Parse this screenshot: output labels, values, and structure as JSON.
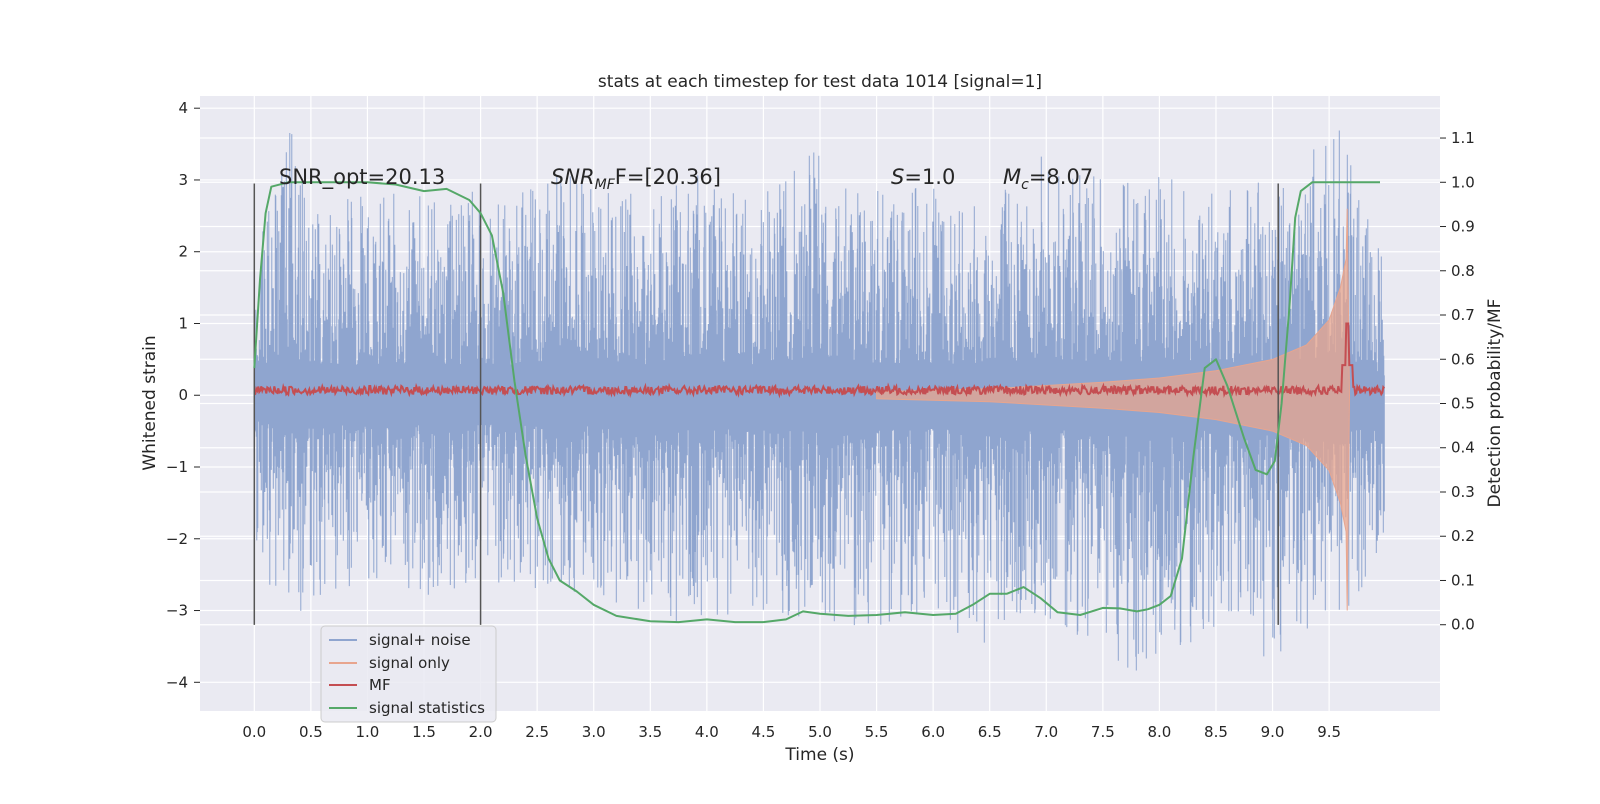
{
  "chart_data": {
    "type": "line",
    "title": "stats at each timestep for test data 1014 [signal=1]",
    "xlabel": "Time (s)",
    "ylabel": "Whitened strain",
    "ylabel_right": "Detection probability/MF",
    "xlim": [
      -0.48,
      10.48
    ],
    "ylim": [
      -4.4,
      4.17
    ],
    "ylim_right": [
      -0.195,
      1.195
    ],
    "x_ticks": [
      "0.0",
      "0.5",
      "1.0",
      "1.5",
      "2.0",
      "2.5",
      "3.0",
      "3.5",
      "4.0",
      "4.5",
      "5.0",
      "5.5",
      "6.0",
      "6.5",
      "7.0",
      "7.5",
      "8.0",
      "8.5",
      "9.0",
      "9.5"
    ],
    "y_ticks": [
      "4",
      "3",
      "2",
      "1",
      "0",
      "−1",
      "−2",
      "−3",
      "−4"
    ],
    "y_ticks_right": [
      "1.1",
      "1.0",
      "0.9",
      "0.8",
      "0.7",
      "0.6",
      "0.5",
      "0.4",
      "0.3",
      "0.2",
      "0.1",
      "0.0"
    ],
    "grid": true,
    "legend_position": "lower-left",
    "annotations": {
      "snr_opt": "SNR_opt=20.13",
      "snr_mf_label": "SNR",
      "snr_mf_sub": "MF",
      "snr_mf_rest": "F=[20.36]",
      "s_label": "S",
      "s_rest": "=1.0",
      "mc_label": "M",
      "mc_sub": "c",
      "mc_rest": "=8.07"
    },
    "vertical_markers_x": [
      0.0,
      2.0,
      9.05
    ],
    "vertical_markers_y": [
      -3.2,
      2.95
    ],
    "series": [
      {
        "name": "signal+ noise",
        "color": "#8fa5cf",
        "x_range": [
          0.0,
          9.99
        ],
        "envelope": {
          "x": [
            0.0,
            0.3,
            0.55,
            1.05,
            1.5,
            1.9,
            2.25,
            2.6,
            3.0,
            3.5,
            4.0,
            4.5,
            5.0,
            5.5,
            6.0,
            6.5,
            7.0,
            7.5,
            7.95,
            8.4,
            8.8,
            9.2,
            9.6,
            9.99
          ],
          "upper": [
            2.1,
            3.8,
            2.6,
            2.9,
            2.8,
            2.9,
            2.8,
            3.2,
            3.1,
            2.8,
            3.2,
            2.8,
            3.6,
            2.9,
            2.9,
            3.0,
            3.4,
            3.0,
            3.2,
            2.8,
            2.9,
            3.3,
            3.7,
            1.8
          ],
          "lower": [
            -2.2,
            -3.2,
            -2.8,
            -2.6,
            -2.8,
            -2.7,
            -2.6,
            -2.8,
            -2.9,
            -3.4,
            -3.1,
            -3.0,
            -3.2,
            -3.3,
            -3.0,
            -3.8,
            -3.1,
            -3.6,
            -4.0,
            -3.3,
            -3.7,
            -3.8,
            -3.5,
            -1.9
          ]
        }
      },
      {
        "name": "signal only",
        "color": "#e8a58e",
        "x": [
          5.5,
          6.5,
          7.5,
          8.0,
          8.5,
          9.0,
          9.3,
          9.5,
          9.6,
          9.65,
          9.66,
          9.68
        ],
        "amplitude": [
          0.05,
          0.09,
          0.18,
          0.24,
          0.34,
          0.5,
          0.7,
          1.05,
          1.5,
          1.9,
          2.6,
          0.0
        ]
      },
      {
        "name": "MF",
        "color": "#c44e52",
        "x_range": [
          0.0,
          9.99
        ],
        "baseline": 0.07,
        "noise": 0.06,
        "peak": {
          "x": 9.66,
          "y": 1.0
        }
      },
      {
        "name": "signal statistics",
        "color": "#55a868",
        "axis": "right",
        "x": [
          0.0,
          0.05,
          0.1,
          0.15,
          0.3,
          0.6,
          1.0,
          1.25,
          1.5,
          1.7,
          1.9,
          2.0,
          2.1,
          2.2,
          2.3,
          2.4,
          2.5,
          2.6,
          2.7,
          2.85,
          3.0,
          3.2,
          3.5,
          3.75,
          4.0,
          4.25,
          4.5,
          4.7,
          4.85,
          5.0,
          5.25,
          5.5,
          5.75,
          6.0,
          6.2,
          6.35,
          6.5,
          6.65,
          6.8,
          6.95,
          7.1,
          7.3,
          7.5,
          7.65,
          7.8,
          7.9,
          8.0,
          8.1,
          8.2,
          8.3,
          8.4,
          8.5,
          8.6,
          8.75,
          8.85,
          8.95,
          9.02,
          9.08,
          9.15,
          9.2,
          9.25,
          9.35,
          9.5,
          9.7,
          9.95
        ],
        "y": [
          0.58,
          0.78,
          0.93,
          0.99,
          1.0,
          1.0,
          1.0,
          0.995,
          0.98,
          0.985,
          0.96,
          0.93,
          0.88,
          0.75,
          0.55,
          0.38,
          0.24,
          0.15,
          0.1,
          0.075,
          0.045,
          0.02,
          0.008,
          0.006,
          0.012,
          0.006,
          0.006,
          0.012,
          0.03,
          0.025,
          0.02,
          0.022,
          0.028,
          0.022,
          0.025,
          0.045,
          0.07,
          0.07,
          0.085,
          0.06,
          0.028,
          0.022,
          0.038,
          0.037,
          0.03,
          0.035,
          0.045,
          0.065,
          0.15,
          0.38,
          0.58,
          0.6,
          0.54,
          0.42,
          0.35,
          0.34,
          0.37,
          0.5,
          0.72,
          0.92,
          0.98,
          1.0,
          1.0,
          1.0,
          1.0
        ]
      }
    ]
  }
}
